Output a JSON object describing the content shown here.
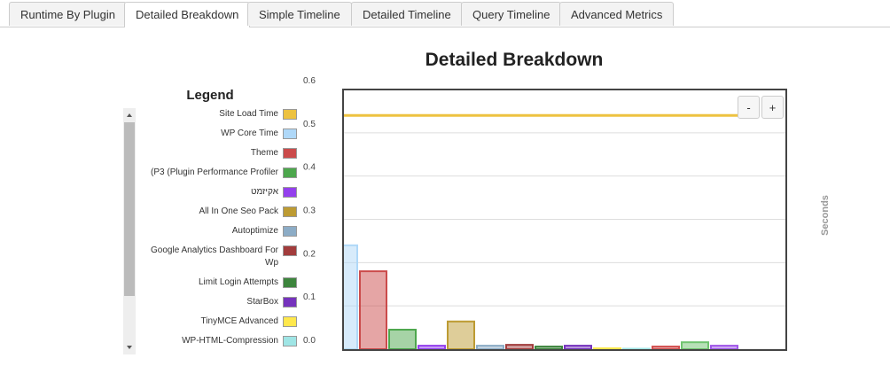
{
  "tabs": [
    "Runtime By Plugin",
    "Detailed Breakdown",
    "Simple Timeline",
    "Detailed Timeline",
    "Query Timeline",
    "Advanced Metrics"
  ],
  "active_tab": 1,
  "zoom_buttons": [
    "-",
    "+"
  ],
  "chart_data": {
    "type": "bar",
    "title": "Detailed Breakdown",
    "legend_title": "Legend",
    "y_label": "Seconds",
    "ylim": [
      0,
      0.6
    ],
    "yticks": [
      {
        "value": 0,
        "label": "0.0"
      },
      0.1,
      0.2,
      0.3,
      0.4,
      0.5,
      0.6
    ],
    "grid": true,
    "series": [
      {
        "name": "Site Load Time",
        "type": "line",
        "color": "#edc240",
        "values": [
          0.54
        ]
      },
      {
        "name": "WP Core Time",
        "color": "#afd8f8",
        "values": [
          0.24
        ]
      },
      {
        "name": "Theme",
        "color": "#cb4b4b",
        "values": [
          0.18
        ]
      },
      {
        "name": "(P3 (Plugin Performance Profiler",
        "color": "#4da74d",
        "values": [
          0.045
        ]
      },
      {
        "name": "אקיזמט",
        "color": "#9440ed",
        "values": [
          0.008
        ]
      },
      {
        "name": "All In One Seo Pack",
        "color": "#bd9b33",
        "values": [
          0.064
        ]
      },
      {
        "name": "Autoptimize",
        "color": "#8cacc6",
        "values": [
          0.008
        ]
      },
      {
        "name": "Google Analytics Dashboard For Wp",
        "color": "#a23c3c",
        "values": [
          0.01
        ]
      },
      {
        "name": "Limit Login Attempts",
        "color": "#3d853d",
        "values": [
          0.006
        ]
      },
      {
        "name": "StarBox",
        "color": "#7633bd",
        "values": [
          0.008
        ]
      },
      {
        "name": "TinyMCE Advanced",
        "color": "#ffe84c",
        "values": [
          0.002
        ]
      },
      {
        "name": "WP-HTML-Compression",
        "color": "#9fe5e5",
        "values": [
          0.001
        ]
      },
      {
        "color": "#d14f4f",
        "values": [
          0.006
        ]
      },
      {
        "color": "#6fc46f",
        "values": [
          0.016
        ]
      },
      {
        "color": "#a057e8",
        "values": [
          0.008
        ]
      }
    ]
  }
}
